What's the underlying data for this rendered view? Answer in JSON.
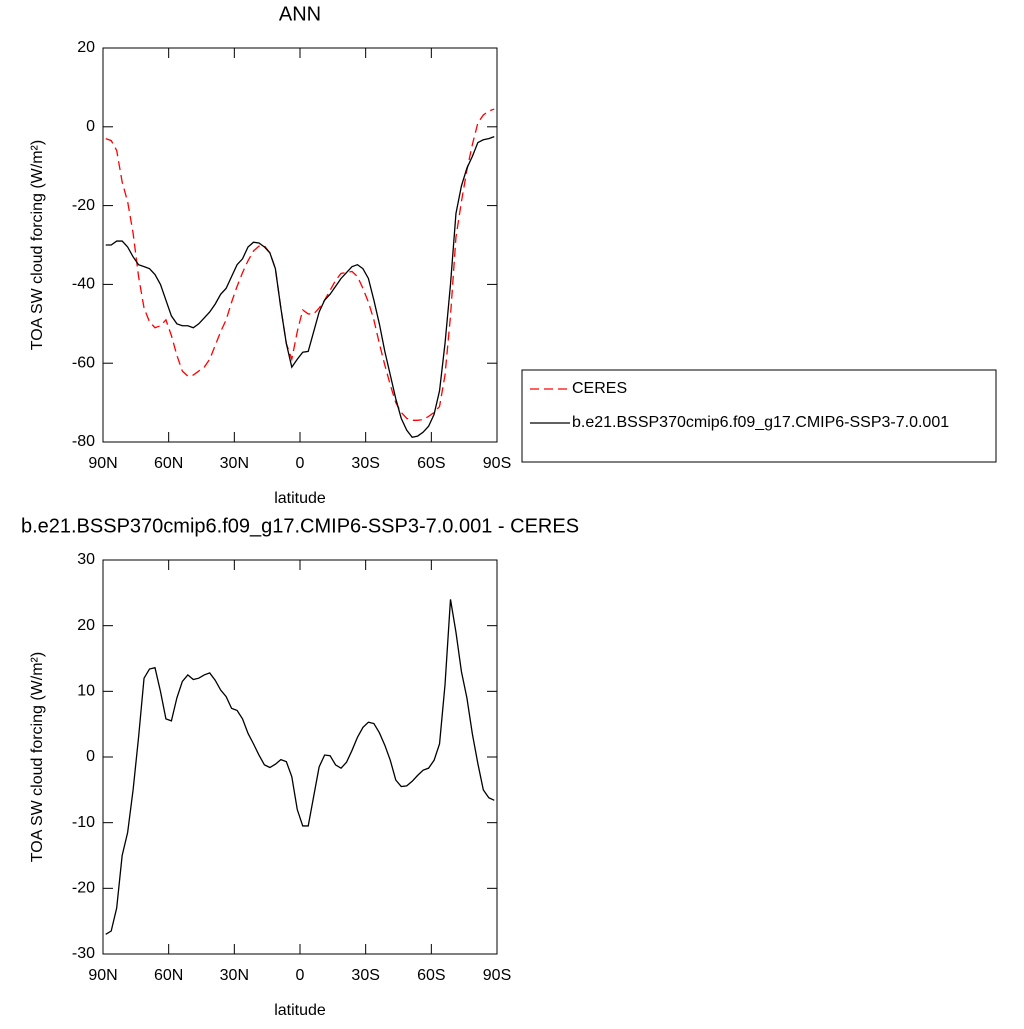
{
  "chart_data": [
    {
      "type": "line",
      "title": "ANN",
      "xlabel": "latitude",
      "ylabel": "TOA SW cloud forcing (W/m²)",
      "x": [
        88.75,
        86.25,
        83.75,
        81.25,
        78.75,
        76.25,
        73.75,
        71.25,
        68.75,
        66.25,
        63.75,
        61.25,
        58.75,
        56.25,
        53.75,
        51.25,
        48.75,
        46.25,
        43.75,
        41.25,
        38.75,
        36.25,
        33.75,
        31.25,
        28.75,
        26.25,
        23.75,
        21.25,
        18.75,
        16.25,
        13.75,
        11.25,
        8.75,
        6.25,
        3.75,
        1.25,
        -1.25,
        -3.75,
        -6.25,
        -8.75,
        -11.25,
        -13.75,
        -16.25,
        -18.75,
        -21.25,
        -23.75,
        -26.25,
        -28.75,
        -31.25,
        -33.75,
        -36.25,
        -38.75,
        -41.25,
        -43.75,
        -46.25,
        -48.75,
        -51.25,
        -53.75,
        -56.25,
        -58.75,
        -61.25,
        -63.75,
        -66.25,
        -68.75,
        -71.25,
        -73.75,
        -76.25,
        -78.75,
        -81.25,
        -83.75,
        -86.25,
        -88.75
      ],
      "xlim": [
        90,
        -90
      ],
      "xticks": [
        {
          "value": 90,
          "label": "90N"
        },
        {
          "value": 60,
          "label": "60N"
        },
        {
          "value": 30,
          "label": "30N"
        },
        0,
        {
          "value": -30,
          "label": "30S"
        },
        {
          "value": -60,
          "label": "60S"
        },
        {
          "value": -90,
          "label": "90S"
        }
      ],
      "ylim": [
        -80,
        20
      ],
      "yticks": [
        -80,
        -60,
        -40,
        -20,
        0,
        20
      ],
      "legend": "right",
      "series": [
        {
          "name": "CERES",
          "color": "#ff0000",
          "dashed": true,
          "values": [
            -3,
            -3.5,
            -6,
            -14,
            -19,
            -27,
            -38,
            -46,
            -49.5,
            -51,
            -50.5,
            -49,
            -53,
            -58,
            -62,
            -63.3,
            -63,
            -62,
            -61,
            -59,
            -55.5,
            -52,
            -49,
            -44.5,
            -40.5,
            -37,
            -34,
            -31.5,
            -30.3,
            -30.2,
            -32,
            -36,
            -46,
            -55,
            -59,
            -52,
            -46.5,
            -47.5,
            -47.5,
            -46,
            -44,
            -41.5,
            -39,
            -37.2,
            -37,
            -36.7,
            -38,
            -41,
            -44.5,
            -49,
            -55,
            -60.5,
            -65.5,
            -70,
            -72.5,
            -74,
            -74.5,
            -74.5,
            -74.3,
            -73.5,
            -72.5,
            -71,
            -63,
            -48,
            -28,
            -19,
            -11,
            -4.5,
            1,
            3,
            4,
            4.5
          ]
        },
        {
          "name": "b.e21.BSSP370cmip6.f09_g17.CMIP6-SSP3-7.0.001",
          "color": "#000000",
          "dashed": false,
          "values": [
            -30,
            -30,
            -29,
            -29,
            -30.5,
            -33,
            -35,
            -35.5,
            -36,
            -37.5,
            -40,
            -44,
            -48,
            -50,
            -50.5,
            -50.5,
            -51,
            -50,
            -48.5,
            -47,
            -45,
            -42.5,
            -41,
            -38,
            -35,
            -33.5,
            -30.5,
            -29.3,
            -29.5,
            -30.5,
            -32,
            -36,
            -46,
            -55,
            -61,
            -59,
            -57.2,
            -57,
            -52,
            -47,
            -44,
            -42.5,
            -40.5,
            -38.5,
            -37,
            -35.5,
            -35,
            -36,
            -38.5,
            -44,
            -50,
            -57,
            -63,
            -69,
            -74,
            -77,
            -78.8,
            -78.5,
            -77.5,
            -76,
            -73,
            -67,
            -55,
            -40,
            -22,
            -15,
            -10.5,
            -7.5,
            -4,
            -3.3,
            -3,
            -2.5
          ]
        }
      ]
    },
    {
      "type": "line",
      "title": "b.e21.BSSP370cmip6.f09_g17.CMIP6-SSP3-7.0.001 - CERES",
      "xlabel": "latitude",
      "ylabel": "TOA SW cloud forcing (W/m²)",
      "x": [
        88.75,
        86.25,
        83.75,
        81.25,
        78.75,
        76.25,
        73.75,
        71.25,
        68.75,
        66.25,
        63.75,
        61.25,
        58.75,
        56.25,
        53.75,
        51.25,
        48.75,
        46.25,
        43.75,
        41.25,
        38.75,
        36.25,
        33.75,
        31.25,
        28.75,
        26.25,
        23.75,
        21.25,
        18.75,
        16.25,
        13.75,
        11.25,
        8.75,
        6.25,
        3.75,
        1.25,
        -1.25,
        -3.75,
        -6.25,
        -8.75,
        -11.25,
        -13.75,
        -16.25,
        -18.75,
        -21.25,
        -23.75,
        -26.25,
        -28.75,
        -31.25,
        -33.75,
        -36.25,
        -38.75,
        -41.25,
        -43.75,
        -46.25,
        -48.75,
        -51.25,
        -53.75,
        -56.25,
        -58.75,
        -61.25,
        -63.75,
        -66.25,
        -68.75,
        -71.25,
        -73.75,
        -76.25,
        -78.75,
        -81.25,
        -83.75,
        -86.25,
        -88.75
      ],
      "xlim": [
        90,
        -90
      ],
      "xticks": [
        {
          "value": 90,
          "label": "90N"
        },
        {
          "value": 60,
          "label": "60N"
        },
        {
          "value": 30,
          "label": "30N"
        },
        0,
        {
          "value": -30,
          "label": "30S"
        },
        {
          "value": -60,
          "label": "60S"
        },
        {
          "value": -90,
          "label": "90S"
        }
      ],
      "ylim": [
        -30,
        30
      ],
      "yticks": [
        -30,
        -20,
        -10,
        0,
        10,
        20,
        30
      ],
      "color": "#000000",
      "values": [
        -27,
        -26.5,
        -23,
        -15,
        -11.5,
        -5,
        3,
        12,
        13.4,
        13.6,
        10,
        5.8,
        5.5,
        9,
        11.5,
        12.5,
        11.8,
        12,
        12.5,
        12.8,
        11.7,
        10.2,
        9.2,
        7.4,
        7.1,
        5.8,
        3.6,
        2,
        0.3,
        -1.2,
        -1.6,
        -1.1,
        -0.4,
        -0.7,
        -3,
        -8,
        -10.5,
        -10.5,
        -6,
        -1.5,
        0.3,
        0.2,
        -1.2,
        -1.7,
        -0.8,
        1,
        3,
        4.5,
        5.3,
        5.1,
        3.7,
        1.8,
        -0.5,
        -3.5,
        -4.5,
        -4.4,
        -3.7,
        -2.8,
        -2,
        -1.7,
        -0.5,
        2,
        11,
        24,
        19,
        13,
        9,
        3.5,
        -1,
        -5,
        -6.2,
        -6.6
      ]
    }
  ]
}
